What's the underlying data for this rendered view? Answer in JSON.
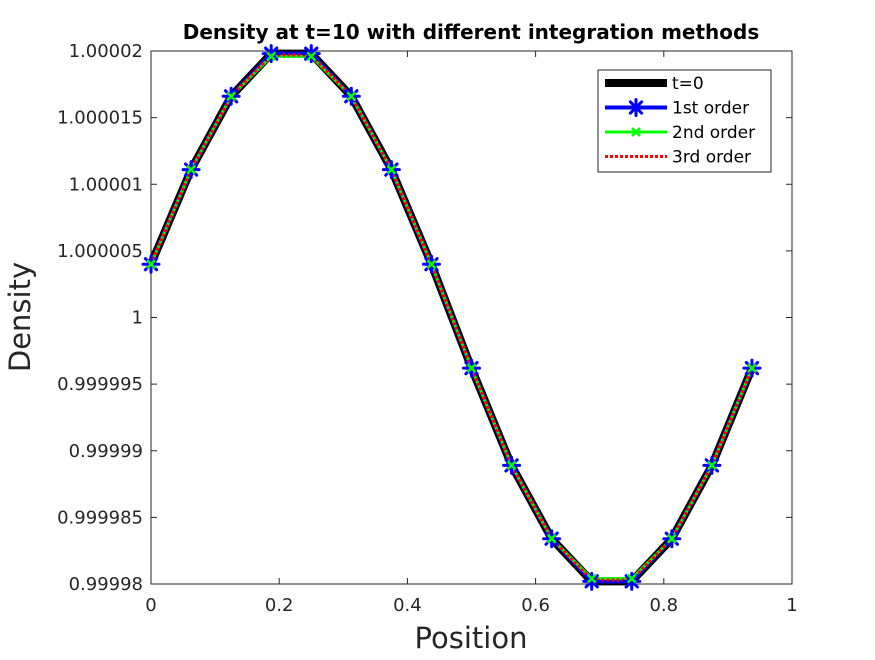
{
  "chart_data": {
    "type": "line",
    "title": "Density at t=10 with different integration methods",
    "xlabel": "Position",
    "ylabel": "Density",
    "xlim": [
      0,
      1
    ],
    "ylim": [
      0.99998,
      1.00002
    ],
    "xticks": [
      0,
      0.2,
      0.4,
      0.6,
      0.8,
      1
    ],
    "xtick_labels": [
      "0",
      "0.2",
      "0.4",
      "0.6",
      "0.8",
      "1"
    ],
    "yticks": [
      0.99998,
      0.999985,
      0.99999,
      0.999995,
      1,
      1.000005,
      1.00001,
      1.000015,
      1.00002
    ],
    "ytick_labels": [
      "0.99998",
      "0.999985",
      "0.99999",
      "0.999995",
      "1",
      "1.000005",
      "1.00001",
      "1.000015",
      "1.00002"
    ],
    "grid": false,
    "legend_position": "top-right",
    "x": [
      0,
      0.0625,
      0.125,
      0.1875,
      0.25,
      0.3125,
      0.375,
      0.4375,
      0.5,
      0.5625,
      0.625,
      0.6875,
      0.75,
      0.8125,
      0.875,
      0.9375
    ],
    "series": [
      {
        "name": "t=0",
        "color": "#000000",
        "style": "solid",
        "marker": "none",
        "values": [
          1.000004,
          1.0000111,
          1.0000166,
          1.0000198,
          1.0000198,
          1.0000166,
          1.0000111,
          1.000004,
          0.9999962,
          0.9999889,
          0.9999834,
          0.9999802,
          0.9999802,
          0.9999834,
          0.9999889,
          0.9999962
        ]
      },
      {
        "name": "1st order",
        "color": "#0000ff",
        "style": "solid",
        "marker": "asterisk",
        "values": [
          1.000004,
          1.0000111,
          1.0000166,
          1.0000198,
          1.0000198,
          1.0000166,
          1.0000111,
          1.000004,
          0.9999962,
          0.9999889,
          0.9999834,
          0.9999802,
          0.9999802,
          0.9999834,
          0.9999889,
          0.9999962
        ]
      },
      {
        "name": "2nd order",
        "color": "#00ff00",
        "style": "solid",
        "marker": "x",
        "values": [
          1.000004,
          1.0000111,
          1.0000166,
          1.0000196,
          1.0000196,
          1.0000166,
          1.0000111,
          1.000004,
          0.9999962,
          0.9999889,
          0.9999834,
          0.9999804,
          0.9999804,
          0.9999834,
          0.9999889,
          0.9999962
        ]
      },
      {
        "name": "3rd order",
        "color": "#ff0000",
        "style": "dotted",
        "marker": "none",
        "values": [
          1.000004,
          1.0000111,
          1.0000166,
          1.0000197,
          1.0000197,
          1.0000166,
          1.0000111,
          1.000004,
          0.9999962,
          0.9999889,
          0.9999834,
          0.9999803,
          0.9999803,
          0.9999834,
          0.9999889,
          0.9999962
        ]
      }
    ]
  }
}
